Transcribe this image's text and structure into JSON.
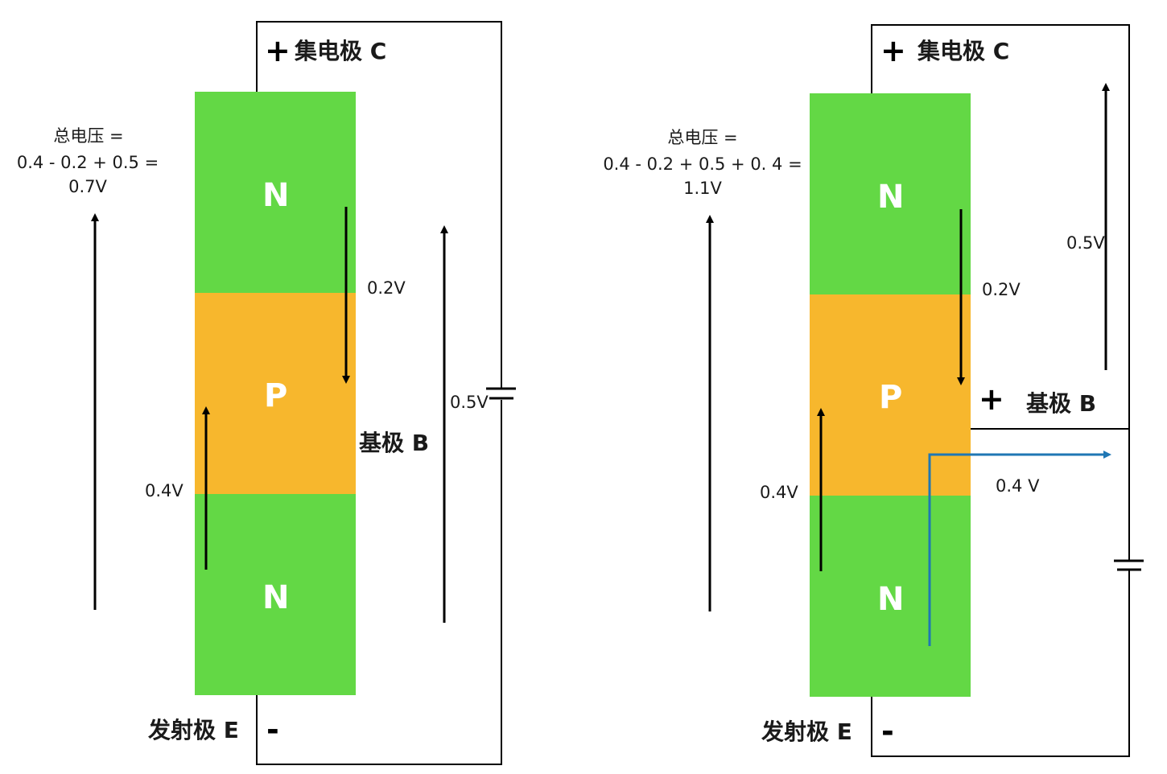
{
  "colors": {
    "n_region": "#63d845",
    "p_region": "#f7b72d",
    "current_arrow": "#1f77b4",
    "line": "#000000"
  },
  "left": {
    "collector_label": "集电极 C",
    "emitter_label": "发射极 E",
    "base_label": "基极 B",
    "plus_sign": "+",
    "minus_sign": "-",
    "region_top": "N",
    "region_mid": "P",
    "region_bottom": "N",
    "total_line1": "总电压 =",
    "total_line2": "0.4 - 0.2 + 0.5 =",
    "total_line3": "0.7V",
    "v_bc": "0.2V",
    "v_be": "0.4V",
    "v_battery": "0.5V"
  },
  "right": {
    "collector_label": "集电极 C",
    "emitter_label": "发射极 E",
    "base_label": "基极 B",
    "plus_sign_collector": "+",
    "plus_sign_base": "+",
    "minus_sign": "-",
    "region_top": "N",
    "region_mid": "P",
    "region_bottom": "N",
    "total_line1": "总电压 =",
    "total_line2": "0.4 - 0.2 + 0.5 + 0. 4 =",
    "total_line3": "1.1V",
    "v_bc": "0.2V",
    "v_be": "0.4V",
    "v_top": "0.5V",
    "v_base_battery": "0.4 V"
  }
}
